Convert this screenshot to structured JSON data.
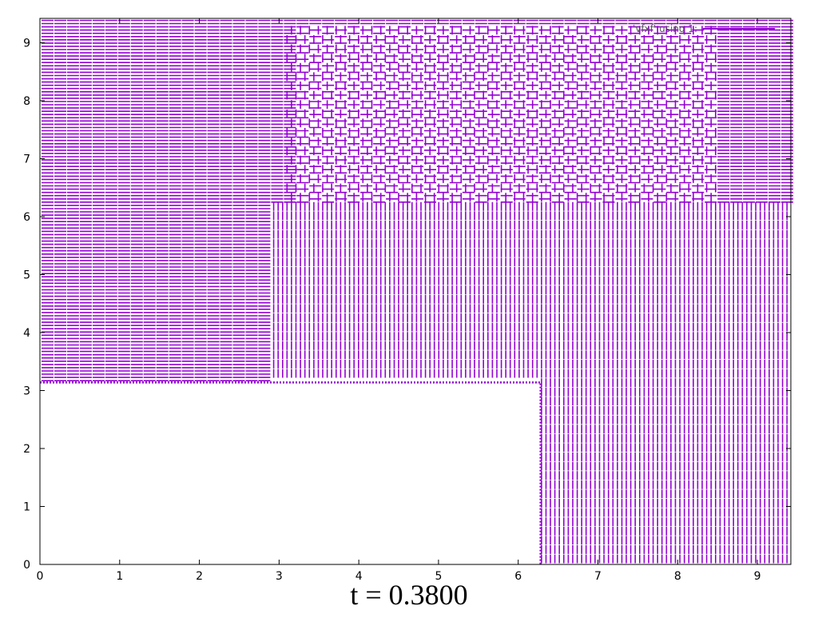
{
  "chart_data": {
    "type": "vector_field",
    "caption": "t = 0.3800",
    "series": [
      {
        "name": "'vfxf' using 1:",
        "color": "#9400d3"
      }
    ],
    "xlim": [
      0,
      9.42
    ],
    "ylim": [
      0,
      9.42
    ],
    "x_ticks": [
      0,
      1,
      2,
      3,
      4,
      5,
      6,
      7,
      8,
      9
    ],
    "y_ticks": [
      0,
      1,
      2,
      3,
      4,
      5,
      6,
      7,
      8,
      9
    ],
    "legend_position": "top-right",
    "grid": false,
    "obstacle": {
      "x": [
        0,
        6.28
      ],
      "y": [
        0,
        3.14
      ]
    },
    "regions": [
      {
        "x": [
          0,
          9.42
        ],
        "y": [
          3.14,
          9.42
        ],
        "dominant_direction": "horizontal"
      },
      {
        "x": [
          3.1,
          8.5
        ],
        "y": [
          6.2,
          9.3
        ],
        "dominant_direction": "mixed"
      },
      {
        "x": [
          2.9,
          9.42
        ],
        "y": [
          3.14,
          6.2
        ],
        "dominant_direction": "vertical"
      },
      {
        "x": [
          6.28,
          9.42
        ],
        "y": [
          0,
          3.14
        ],
        "dominant_direction": "vertical"
      }
    ]
  }
}
